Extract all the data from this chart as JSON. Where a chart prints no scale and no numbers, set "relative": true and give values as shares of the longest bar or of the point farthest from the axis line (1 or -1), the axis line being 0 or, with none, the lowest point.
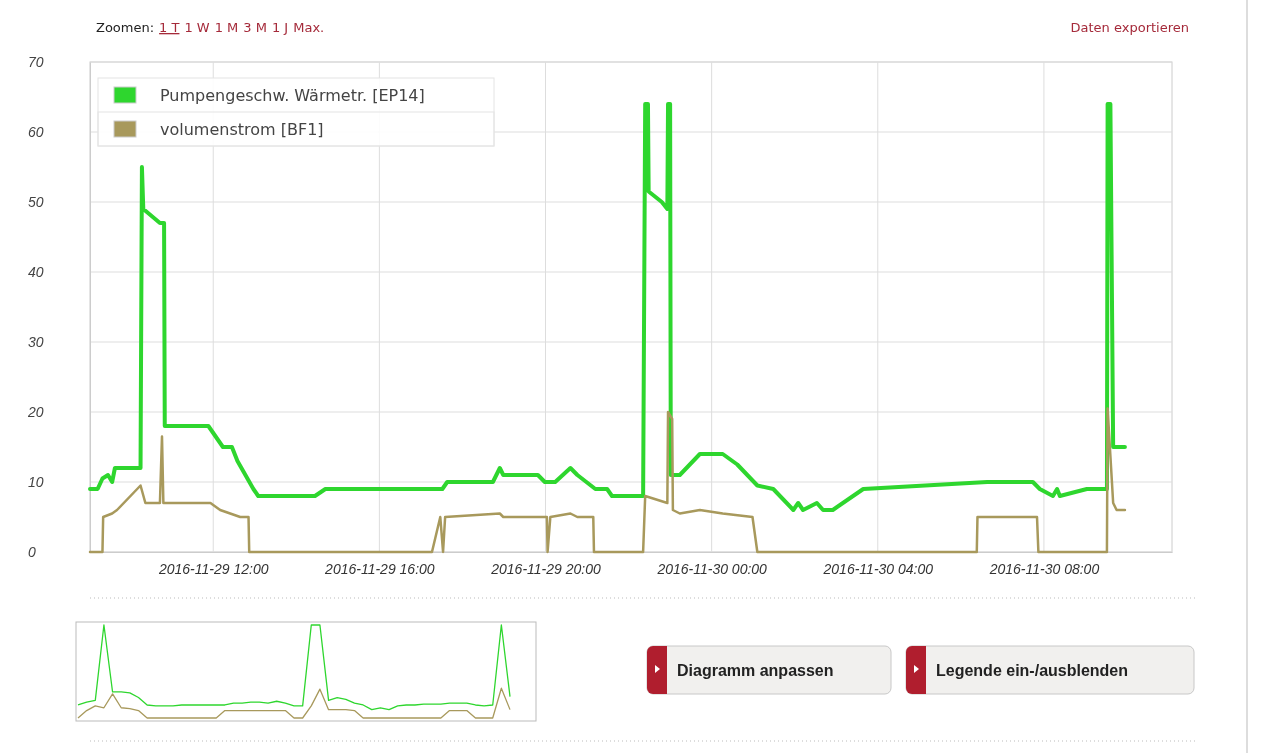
{
  "chart_data": [
    {
      "type": "line",
      "series": [
        {
          "name": "Pumpengeschw. Wärmetr. [EP14]",
          "color": "#2ed62e",
          "x": [
            "2016-11-29T09:02",
            "2016-11-29T09:13",
            "2016-11-29T09:20",
            "2016-11-29T09:28",
            "2016-11-29T09:34",
            "2016-11-29T09:38",
            "2016-11-29T10:15",
            "2016-11-29T10:17",
            "2016-11-29T10:19",
            "2016-11-29T10:43",
            "2016-11-29T10:49",
            "2016-11-29T10:50",
            "2016-11-29T11:53",
            "2016-11-29T12:14",
            "2016-11-29T12:27",
            "2016-11-29T12:35",
            "2016-11-29T12:58",
            "2016-11-29T13:05",
            "2016-11-29T14:27",
            "2016-11-29T14:42",
            "2016-11-29T17:31",
            "2016-11-29T17:38",
            "2016-11-29T18:44",
            "2016-11-29T18:54",
            "2016-11-29T18:59",
            "2016-11-29T19:49",
            "2016-11-29T19:59",
            "2016-11-29T20:14",
            "2016-11-29T20:36",
            "2016-11-29T20:46",
            "2016-11-29T21:12",
            "2016-11-29T21:29",
            "2016-11-29T21:36",
            "2016-11-29T22:21",
            "2016-11-29T22:24",
            "2016-11-29T22:28",
            "2016-11-29T22:29",
            "2016-11-29T22:48",
            "2016-11-29T22:56",
            "2016-11-29T22:57",
            "2016-11-29T23:00",
            "2016-11-29T23:01",
            "2016-11-29T23:14",
            "2016-11-29T23:43",
            "2016-11-30T00:16",
            "2016-11-30T00:37",
            "2016-11-30T01:06",
            "2016-11-30T01:29",
            "2016-11-30T01:58",
            "2016-11-30T02:05",
            "2016-11-30T02:12",
            "2016-11-30T02:32",
            "2016-11-30T02:41",
            "2016-11-30T02:55",
            "2016-11-30T03:39",
            "2016-11-30T06:38",
            "2016-11-30T07:44",
            "2016-11-30T07:54",
            "2016-11-30T08:13",
            "2016-11-30T08:19",
            "2016-11-30T08:23",
            "2016-11-30T09:02",
            "2016-11-30T09:31",
            "2016-11-30T09:32",
            "2016-11-30T09:36",
            "2016-11-30T09:40",
            "2016-11-30T09:57"
          ],
          "values": [
            9,
            9,
            10.5,
            11,
            10,
            12,
            12,
            55,
            49,
            47,
            47,
            18,
            18,
            15,
            15,
            13,
            9,
            8,
            8,
            9,
            9,
            10,
            10,
            12,
            11,
            11,
            10,
            10,
            12,
            11,
            9,
            9,
            8,
            8,
            64,
            64,
            51.5,
            50,
            49,
            64,
            64,
            11,
            11,
            14,
            14,
            12.5,
            9.5,
            9,
            6,
            7,
            6,
            7,
            6,
            6,
            9,
            10,
            10,
            9,
            8,
            9,
            8,
            9,
            9,
            64,
            64,
            15,
            15
          ]
        },
        {
          "name": "volumenstrom [BF1]",
          "color": "#a8995c",
          "x": [
            "2016-11-29T09:02",
            "2016-11-29T09:20",
            "2016-11-29T09:21",
            "2016-11-29T09:34",
            "2016-11-29T09:41",
            "2016-11-29T10:15",
            "2016-11-29T10:22",
            "2016-11-29T10:43",
            "2016-11-29T10:46",
            "2016-11-29T10:48",
            "2016-11-29T11:56",
            "2016-11-29T12:10",
            "2016-11-29T12:39",
            "2016-11-29T12:51",
            "2016-11-29T12:52",
            "2016-11-29T17:16",
            "2016-11-29T17:28",
            "2016-11-29T17:32",
            "2016-11-29T17:35",
            "2016-11-29T18:54",
            "2016-11-29T18:59",
            "2016-11-29T20:02",
            "2016-11-29T20:03",
            "2016-11-29T20:07",
            "2016-11-29T20:36",
            "2016-11-29T20:46",
            "2016-11-29T21:09",
            "2016-11-29T21:10",
            "2016-11-29T22:21",
            "2016-11-29T22:24",
            "2016-11-29T22:56",
            "2016-11-29T22:57",
            "2016-11-29T23:03",
            "2016-11-29T23:04",
            "2016-11-29T23:14",
            "2016-11-29T23:43",
            "2016-11-30T00:16",
            "2016-11-30T00:59",
            "2016-11-30T01:06",
            "2016-11-30T06:23",
            "2016-11-30T06:24",
            "2016-11-30T07:50",
            "2016-11-30T07:52",
            "2016-11-30T09:31",
            "2016-11-30T09:32",
            "2016-11-30T09:40",
            "2016-11-30T09:45",
            "2016-11-30T09:57"
          ],
          "values": [
            0,
            0,
            5,
            5.5,
            6,
            9.5,
            7,
            7,
            16.5,
            7,
            7,
            6,
            5,
            5,
            0,
            0,
            5,
            0,
            5,
            5.5,
            5,
            5,
            0,
            5,
            5.5,
            5,
            5,
            0,
            0,
            8,
            7,
            20,
            19,
            6,
            5.5,
            6,
            5.5,
            5,
            0,
            0,
            5,
            5,
            0,
            0,
            20.5,
            7,
            6,
            6
          ]
        }
      ],
      "xlim": [
        "2016-11-29T09:02",
        "2016-11-30T11:05"
      ],
      "xticks": [
        {
          "value": "2016-11-29T12:00",
          "label": "2016-11-29 12:00"
        },
        {
          "value": "2016-11-29T16:00",
          "label": "2016-11-29 16:00"
        },
        {
          "value": "2016-11-29T20:00",
          "label": "2016-11-29 20:00"
        },
        {
          "value": "2016-11-30T00:00",
          "label": "2016-11-30 00:00"
        },
        {
          "value": "2016-11-30T04:00",
          "label": "2016-11-30 04:00"
        },
        {
          "value": "2016-11-30T08:00",
          "label": "2016-11-30 08:00"
        }
      ],
      "ylim": [
        0,
        70
      ],
      "yticks": [
        0,
        10,
        20,
        30,
        40,
        50,
        60,
        70
      ],
      "grid": true,
      "legend": "top left",
      "marker": "none",
      "line_style": "solid",
      "annotations": [
        "Zoomen:",
        "1 T",
        "1 W",
        "1 M",
        "3 M",
        "1 J",
        "Max.",
        "Daten exportieren",
        "Diagramm anpassen",
        "Legende ein-/ausblenden"
      ]
    },
    {
      "type": "line",
      "relative": true,
      "tick_labels": false,
      "line_style": "solid",
      "categories": [
        null,
        null,
        null,
        null,
        null,
        null,
        null,
        null,
        null,
        null,
        null,
        null,
        null,
        null,
        null,
        null,
        null,
        null,
        null,
        null,
        null,
        null,
        null,
        null,
        null,
        null,
        null,
        null,
        null,
        null,
        null,
        null,
        null,
        null,
        null,
        null,
        null,
        null,
        null,
        null,
        null,
        null,
        null,
        null,
        null,
        null,
        null,
        null,
        null,
        null,
        null
      ],
      "series": [
        {
          "color": "#2ed62e",
          "values": [
            0.14,
            0.17,
            0.19,
            1,
            0.28,
            0.28,
            0.27,
            0.22,
            0.14,
            0.13,
            0.13,
            0.13,
            0.14,
            0.14,
            0.14,
            0.14,
            0.14,
            0.14,
            0.16,
            0.16,
            0.17,
            0.17,
            0.16,
            0.18,
            0.16,
            0.13,
            0.13,
            1,
            1,
            0.19,
            0.22,
            0.2,
            0.16,
            0.14,
            0.09,
            0.11,
            0.09,
            0.13,
            0.14,
            0.14,
            0.15,
            0.15,
            0.15,
            0.16,
            0.16,
            0.16,
            0.14,
            0.13,
            0.14,
            1,
            0.23
          ]
        },
        {
          "color": "#a8995c",
          "values": [
            0,
            0.08,
            0.13,
            0.11,
            0.26,
            0.11,
            0.1,
            0.08,
            0,
            0,
            0,
            0,
            0,
            0,
            0,
            0,
            0,
            0.08,
            0.08,
            0.08,
            0.08,
            0.08,
            0.08,
            0.08,
            0.08,
            0,
            0,
            0.13,
            0.31,
            0.09,
            0.09,
            0.09,
            0.08,
            0,
            0,
            0,
            0,
            0,
            0,
            0,
            0,
            0,
            0,
            0.08,
            0.08,
            0.08,
            0,
            0,
            0,
            0.32,
            0.09
          ]
        }
      ]
    }
  ]
}
